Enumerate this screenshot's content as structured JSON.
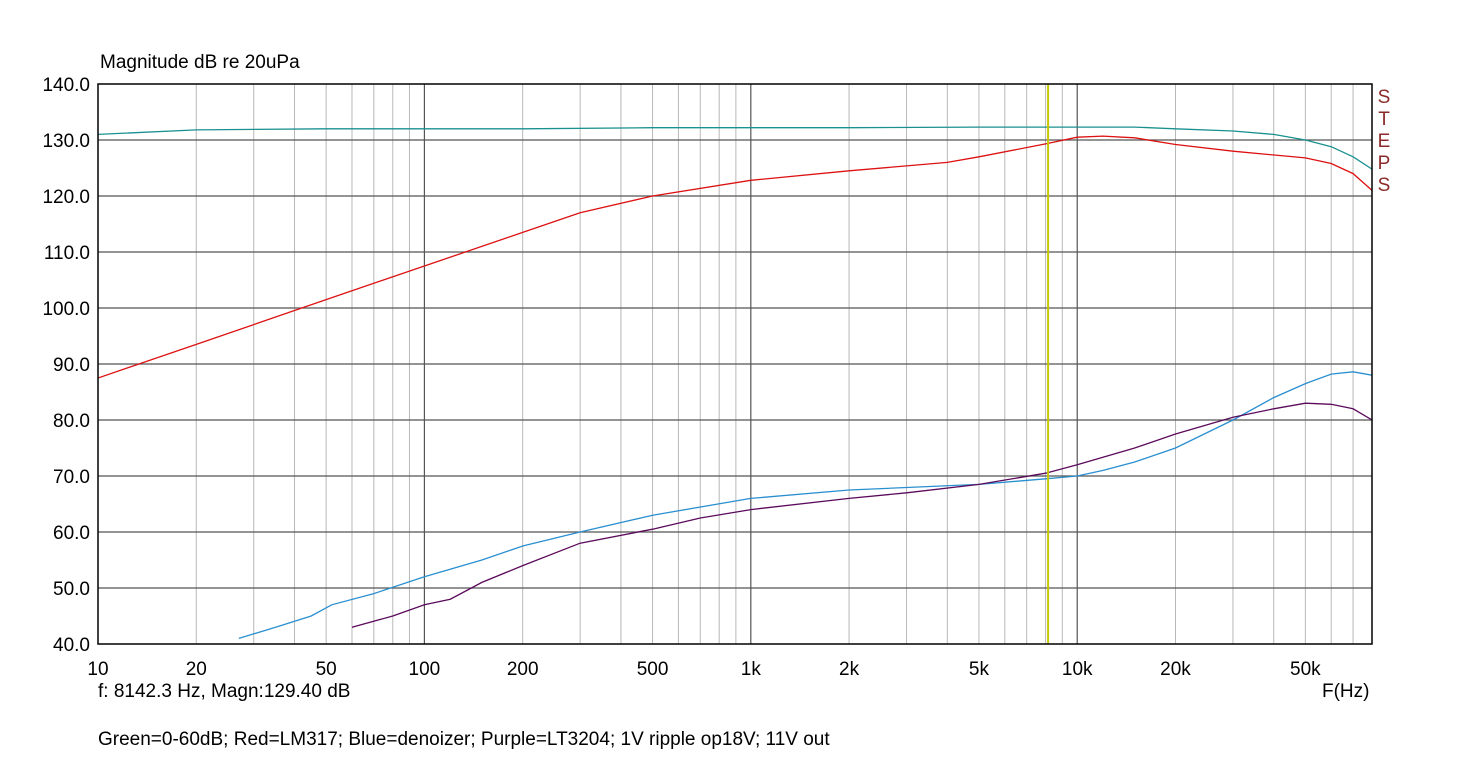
{
  "chart_data": {
    "type": "line",
    "ylabel": "Magnitude dB re 20uPa",
    "xlabel": "F(Hz)",
    "x_scale": "log",
    "xlim": [
      10,
      80000
    ],
    "ylim": [
      40,
      140
    ],
    "grid": true,
    "y_ticks": [
      "140.0",
      "130.0",
      "120.0",
      "110.0",
      "100.0",
      "90.0",
      "80.0",
      "70.0",
      "60.0",
      "50.0",
      "40.0"
    ],
    "y_tick_values": [
      140,
      130,
      120,
      110,
      100,
      90,
      80,
      70,
      60,
      50,
      40
    ],
    "x_ticks": [
      "10",
      "20",
      "50",
      "100",
      "200",
      "500",
      "1k",
      "2k",
      "5k",
      "10k",
      "20k",
      "50k"
    ],
    "x_tick_values": [
      10,
      20,
      50,
      100,
      200,
      500,
      1000,
      2000,
      5000,
      10000,
      20000,
      50000
    ],
    "steps_label": [
      "S",
      "T",
      "E",
      "P",
      "S"
    ],
    "cursor": {
      "x": 8142.3,
      "color": "#c8c800"
    },
    "readout": "f: 8142.3 Hz, Magn:129.40 dB",
    "legend_text": "Green=0-60dB; Red=LM317; Blue=denoizer; Purple=LT3204; 1V ripple op18V; 11V out",
    "series": [
      {
        "color": "#1a9090",
        "x": [
          10,
          20,
          50,
          100,
          200,
          500,
          1000,
          2000,
          5000,
          10000,
          15000,
          20000,
          30000,
          40000,
          50000,
          60000,
          70000,
          80000
        ],
        "y": [
          131,
          131.8,
          132,
          132,
          132,
          132.2,
          132.2,
          132.2,
          132.3,
          132.3,
          132.3,
          132,
          131.6,
          131,
          130,
          128.8,
          127,
          124.8
        ]
      },
      {
        "color": "#dd1111",
        "x": [
          10,
          20,
          50,
          100,
          200,
          300,
          500,
          1000,
          2000,
          4000,
          5000,
          8000,
          10000,
          12000,
          15000,
          20000,
          30000,
          50000,
          60000,
          70000,
          80000
        ],
        "y": [
          87.5,
          93.5,
          101.5,
          107.5,
          113.5,
          117,
          120,
          122.8,
          124.5,
          126,
          127,
          129.3,
          130.5,
          130.7,
          130.4,
          129.2,
          128,
          126.8,
          125.8,
          124,
          121
        ]
      },
      {
        "color": "#2a8fd0",
        "x": [
          27,
          35,
          45,
          52,
          70,
          100,
          150,
          200,
          300,
          500,
          1000,
          2000,
          5000,
          8000,
          10000,
          12000,
          15000,
          20000,
          30000,
          40000,
          50000,
          60000,
          70000,
          80000
        ],
        "y": [
          41,
          43,
          45,
          47,
          49,
          52,
          55,
          57.5,
          60,
          63,
          66,
          67.5,
          68.5,
          69.5,
          70,
          71,
          72.5,
          75,
          80,
          84,
          86.5,
          88.2,
          88.6,
          88
        ]
      },
      {
        "color": "#5b0a5b",
        "x": [
          60,
          80,
          100,
          120,
          150,
          200,
          300,
          500,
          700,
          1000,
          2000,
          3000,
          5000,
          8000,
          10000,
          15000,
          20000,
          30000,
          40000,
          50000,
          60000,
          70000,
          80000
        ],
        "y": [
          43,
          45,
          47,
          48,
          51,
          54,
          58,
          60.5,
          62.5,
          64,
          66,
          67,
          68.5,
          70.5,
          72,
          75,
          77.5,
          80.5,
          82,
          83,
          82.8,
          82,
          80
        ]
      }
    ]
  }
}
